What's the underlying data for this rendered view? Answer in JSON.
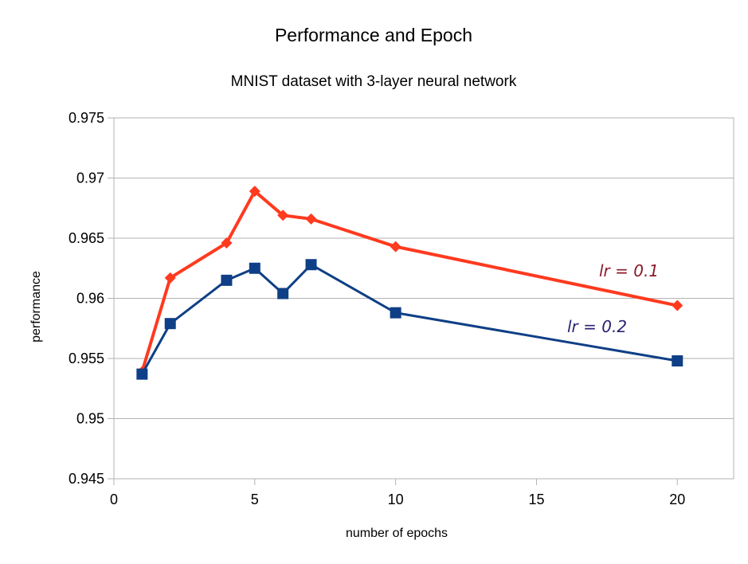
{
  "chart_data": {
    "type": "line",
    "title": "Performance and Epoch",
    "subtitle": "MNIST dataset with 3-layer neural network",
    "xlabel": "number of epochs",
    "ylabel": "performance",
    "xlim": [
      0,
      22
    ],
    "ylim": [
      0.945,
      0.975
    ],
    "x_ticks": [
      0,
      5,
      10,
      15,
      20
    ],
    "x_tick_labels": [
      "0",
      "5",
      "10",
      "15",
      "20"
    ],
    "y_ticks": [
      0.945,
      0.95,
      0.955,
      0.96,
      0.965,
      0.97,
      0.975
    ],
    "y_tick_labels": [
      "0.945",
      "0.95",
      "0.955",
      "0.96",
      "0.965",
      "0.97",
      "0.975"
    ],
    "grid": true,
    "legend": "none",
    "series": [
      {
        "name": "lr = 0.1",
        "color": "#ff3a1f",
        "marker": "diamond",
        "points": [
          {
            "x": 1,
            "y": 0.9539
          },
          {
            "x": 2,
            "y": 0.9617
          },
          {
            "x": 4,
            "y": 0.9646
          },
          {
            "x": 5,
            "y": 0.9689
          },
          {
            "x": 6,
            "y": 0.9669
          },
          {
            "x": 7,
            "y": 0.9666
          },
          {
            "x": 10,
            "y": 0.9643
          },
          {
            "x": 20,
            "y": 0.9594
          }
        ]
      },
      {
        "name": "lr = 0.2",
        "color": "#0f3f86",
        "marker": "square",
        "points": [
          {
            "x": 1,
            "y": 0.9537
          },
          {
            "x": 2,
            "y": 0.9579
          },
          {
            "x": 4,
            "y": 0.9615
          },
          {
            "x": 5,
            "y": 0.9625
          },
          {
            "x": 6,
            "y": 0.9604
          },
          {
            "x": 7,
            "y": 0.9628
          },
          {
            "x": 10,
            "y": 0.9588
          },
          {
            "x": 20,
            "y": 0.9548
          }
        ]
      }
    ],
    "annotations": [
      {
        "text": "lr = 0.1",
        "color": "#8b1a2b"
      },
      {
        "text": "lr = 0.2",
        "color": "#2a2470"
      }
    ]
  }
}
